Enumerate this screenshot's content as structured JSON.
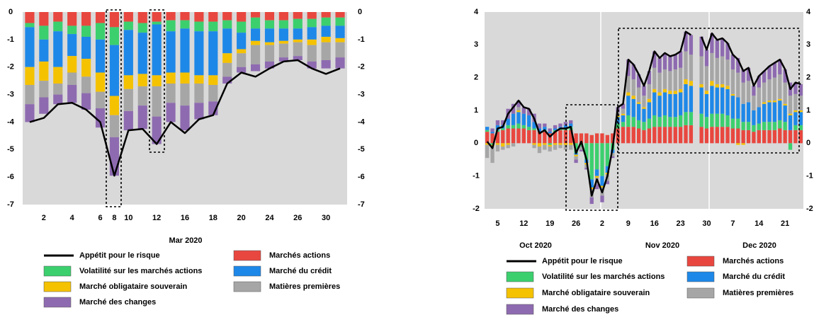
{
  "chart_data": [
    {
      "type": "bar",
      "stacked": true,
      "xlabel": "Mar 2020",
      "categories": [
        null,
        "2",
        null,
        "4",
        null,
        "6",
        "8",
        "10",
        null,
        "12",
        null,
        "16",
        null,
        "18",
        null,
        "20",
        null,
        "24",
        null,
        "26",
        null,
        "30",
        null
      ],
      "ylim": [
        -7,
        0
      ],
      "yticks": [
        0,
        -1,
        -2,
        -3,
        -4,
        -5,
        -6,
        -7
      ],
      "y2lim": [
        -7,
        0
      ],
      "y2ticks": [
        0,
        -1,
        -2,
        -3,
        -4,
        -5,
        -6,
        -7
      ],
      "grid": false,
      "series": [
        {
          "name": "Appétit pour le risque",
          "type": "line",
          "color": "#000000",
          "values": [
            -4.0,
            -3.85,
            -3.35,
            -3.3,
            -3.55,
            -4.0,
            -5.95,
            -4.3,
            -4.25,
            -4.8,
            -4.0,
            -4.4,
            -3.9,
            -3.75,
            -2.6,
            -2.2,
            -2.35,
            -2.05,
            -1.8,
            -1.75,
            -2.05,
            -2.25,
            -2.05
          ]
        },
        {
          "name": "Marchés actions",
          "type": "bar",
          "color": "#e8473f",
          "values": [
            -0.4,
            -0.5,
            -0.35,
            -0.5,
            -0.5,
            -0.4,
            -0.55,
            -0.35,
            -0.4,
            -0.35,
            -0.3,
            -0.3,
            -0.35,
            -0.35,
            -0.3,
            -0.35,
            -0.2,
            -0.3,
            -0.3,
            -0.25,
            -0.25,
            -0.2,
            -0.2
          ]
        },
        {
          "name": "Volatilité sur les marchés actions",
          "type": "bar",
          "color": "#3ccf6e",
          "values": [
            -0.15,
            -0.5,
            -0.35,
            -0.3,
            -0.4,
            -0.6,
            -0.65,
            -0.3,
            -0.35,
            -0.1,
            -0.4,
            -0.3,
            -0.35,
            -0.35,
            -0.3,
            -0.4,
            -0.4,
            -0.3,
            -0.3,
            -0.35,
            -0.3,
            -0.3,
            -0.3
          ]
        },
        {
          "name": "Marché du crédit",
          "type": "bar",
          "color": "#1e88e8",
          "values": [
            -1.45,
            -0.8,
            -1.3,
            -0.8,
            -0.8,
            -1.2,
            -1.85,
            -1.65,
            -1.5,
            -1.85,
            -1.5,
            -1.6,
            -1.6,
            -1.6,
            -0.9,
            -0.6,
            -0.45,
            -0.5,
            -0.45,
            -0.4,
            -0.45,
            -0.4,
            -0.45
          ]
        },
        {
          "name": "Marché obligataire souverain",
          "type": "bar",
          "color": "#f5c200",
          "values": [
            -0.65,
            -0.7,
            -0.6,
            -0.6,
            -0.65,
            -0.7,
            -0.7,
            -0.5,
            -0.45,
            -0.4,
            -0.4,
            -0.4,
            -0.3,
            -0.35,
            -0.35,
            -0.15,
            -0.15,
            -0.1,
            -0.1,
            -0.1,
            -0.2,
            -0.2,
            -0.15
          ]
        },
        {
          "name": "Matières premières",
          "type": "bar",
          "color": "#a6a6a6",
          "values": [
            -0.7,
            -0.6,
            -0.4,
            -0.45,
            -0.6,
            -0.6,
            -0.8,
            -0.8,
            -0.7,
            -1.1,
            -0.7,
            -0.8,
            -0.7,
            -0.6,
            -0.5,
            -0.5,
            -0.7,
            -0.6,
            -0.5,
            -0.5,
            -0.6,
            -0.65,
            -0.55
          ]
        },
        {
          "name": "Marché des changes",
          "type": "bar",
          "color": "#8e6bb0",
          "values": [
            -0.65,
            -0.6,
            -0.35,
            -0.65,
            -0.6,
            -0.7,
            -1.4,
            -0.7,
            -0.85,
            -1.0,
            -0.7,
            -0.9,
            -0.6,
            -0.5,
            -0.25,
            -0.2,
            -0.25,
            -0.25,
            -0.15,
            -0.15,
            -0.25,
            -0.3,
            -0.4
          ]
        }
      ]
    },
    {
      "type": "bar",
      "stacked": true,
      "x_group_labels": [
        "Oct 2020",
        "Nov 2020",
        "Dec 2020"
      ],
      "categories": [
        null,
        null,
        "5",
        null,
        null,
        null,
        null,
        "12",
        null,
        null,
        null,
        null,
        "19",
        null,
        null,
        null,
        null,
        "26",
        null,
        null,
        null,
        null,
        "2",
        null,
        null,
        null,
        null,
        "9",
        null,
        null,
        null,
        null,
        "16",
        null,
        null,
        null,
        null,
        "23",
        null,
        null,
        null,
        null,
        "30",
        null,
        null,
        null,
        null,
        "7",
        null,
        null,
        null,
        null,
        "14",
        null,
        null,
        null,
        null,
        "21",
        null,
        null,
        null
      ],
      "ylim": [
        -2,
        4
      ],
      "yticks": [
        4,
        3,
        2,
        1,
        0,
        -1,
        -2
      ],
      "y2lim": [
        -2,
        4
      ],
      "y2ticks": [
        4,
        3,
        2,
        1,
        0,
        -1,
        -2
      ],
      "grid": false,
      "series": [
        {
          "name": "Appétit pour le risque",
          "type": "line",
          "color": "#000000",
          "values": [
            0.05,
            -0.15,
            0.45,
            0.5,
            0.9,
            1.1,
            1.3,
            1.1,
            1.05,
            0.75,
            0.3,
            0.4,
            0.2,
            0.35,
            0.45,
            0.45,
            0.5,
            -0.3,
            0.05,
            -0.5,
            -1.6,
            -1.1,
            -1.5,
            -1.0,
            -0.15,
            1.1,
            1.2,
            2.55,
            2.4,
            2.1,
            1.75,
            2.2,
            2.8,
            2.6,
            2.75,
            2.65,
            2.7,
            2.8,
            3.4,
            3.3,
            null,
            3.25,
            2.85,
            3.35,
            3.15,
            3.2,
            3.05,
            2.7,
            2.55,
            2.2,
            2.3,
            1.75,
            2.05,
            2.2,
            2.35,
            2.45,
            2.55,
            2.25,
            1.65,
            1.85,
            1.8
          ]
        },
        {
          "name": "Marchés actions",
          "type": "bar",
          "color": "#e8473f",
          "values": [
            0.35,
            0.3,
            0.35,
            0.4,
            0.45,
            0.45,
            0.45,
            0.45,
            0.4,
            0.4,
            0.35,
            0.35,
            0.3,
            0.35,
            0.4,
            0.4,
            0.4,
            0.3,
            0.3,
            0.3,
            0.25,
            0.3,
            0.3,
            0.25,
            0.3,
            0.45,
            0.5,
            0.5,
            0.5,
            0.45,
            0.4,
            0.45,
            0.5,
            0.5,
            0.5,
            0.5,
            0.5,
            0.5,
            0.55,
            0.55,
            null,
            0.5,
            0.45,
            0.5,
            0.5,
            0.5,
            0.5,
            0.45,
            0.45,
            0.4,
            0.4,
            0.35,
            0.4,
            0.4,
            0.4,
            0.4,
            0.45,
            0.4,
            0.4,
            0.4,
            0.4
          ]
        },
        {
          "name": "Volatilité sur les marchés actions",
          "type": "bar",
          "color": "#3ccf6e",
          "values": [
            0.05,
            -0.05,
            0.05,
            0.05,
            0.1,
            0.1,
            0.15,
            0.1,
            0.1,
            0.05,
            0.0,
            0.05,
            -0.05,
            0.05,
            0.05,
            0.05,
            0.1,
            -0.3,
            -0.1,
            -0.5,
            -1.1,
            -0.8,
            -1.0,
            -0.7,
            -0.2,
            0.15,
            0.15,
            0.35,
            0.3,
            0.25,
            0.25,
            0.3,
            0.35,
            0.3,
            0.35,
            0.3,
            0.3,
            0.35,
            0.4,
            0.4,
            null,
            0.4,
            0.35,
            0.4,
            0.4,
            0.4,
            0.35,
            0.3,
            0.3,
            0.25,
            0.25,
            0.2,
            0.2,
            0.25,
            0.25,
            0.25,
            0.25,
            0.25,
            -0.2,
            0.15,
            0.15
          ]
        },
        {
          "name": "Marché du crédit",
          "type": "bar",
          "color": "#1e88e8",
          "values": [
            0.1,
            0.05,
            0.15,
            0.1,
            0.2,
            0.35,
            0.35,
            0.35,
            0.35,
            0.2,
            0.1,
            0.1,
            0.05,
            0.05,
            0.05,
            0.1,
            0.1,
            -0.05,
            0.0,
            -0.1,
            -0.25,
            -0.2,
            -0.3,
            -0.2,
            -0.1,
            0.2,
            0.2,
            0.6,
            0.55,
            0.5,
            0.4,
            0.5,
            0.7,
            0.65,
            0.7,
            0.7,
            0.7,
            0.7,
            0.85,
            0.8,
            null,
            0.8,
            0.7,
            0.85,
            0.8,
            0.8,
            0.8,
            0.7,
            0.65,
            0.55,
            0.6,
            0.45,
            0.5,
            0.55,
            0.6,
            0.6,
            0.6,
            0.5,
            0.45,
            0.4,
            0.4
          ]
        },
        {
          "name": "Marché obligataire souverain",
          "type": "bar",
          "color": "#f5c200",
          "values": [
            -0.05,
            -0.05,
            -0.05,
            -0.1,
            -0.05,
            0.0,
            0.05,
            0.0,
            0.0,
            -0.05,
            -0.1,
            -0.05,
            -0.05,
            -0.05,
            -0.05,
            -0.05,
            -0.05,
            -0.05,
            0.0,
            -0.05,
            -0.05,
            -0.05,
            -0.05,
            -0.05,
            0.0,
            0.05,
            0.05,
            0.1,
            0.1,
            0.05,
            0.05,
            0.1,
            0.1,
            0.1,
            0.1,
            0.1,
            0.1,
            0.1,
            0.15,
            0.15,
            null,
            0.1,
            0.1,
            0.15,
            0.1,
            0.1,
            0.1,
            0.05,
            -0.05,
            -0.05,
            0.0,
            0.0,
            0.0,
            0.05,
            0.05,
            0.05,
            0.05,
            0.05,
            0.05,
            0.05,
            0.05
          ]
        },
        {
          "name": "Matières premières",
          "type": "bar",
          "color": "#a6a6a6",
          "values": [
            -0.4,
            -0.5,
            -0.2,
            -0.1,
            -0.1,
            -0.1,
            0.1,
            0.0,
            0.0,
            -0.1,
            -0.2,
            -0.15,
            -0.15,
            -0.15,
            -0.1,
            -0.15,
            -0.15,
            -0.1,
            -0.1,
            -0.1,
            -0.25,
            -0.2,
            -0.25,
            -0.2,
            -0.1,
            0.1,
            0.15,
            0.5,
            0.5,
            0.45,
            0.35,
            0.45,
            0.65,
            0.6,
            0.6,
            0.6,
            0.65,
            0.65,
            0.85,
            0.8,
            null,
            0.85,
            0.75,
            0.85,
            0.8,
            0.85,
            0.8,
            0.75,
            0.75,
            0.65,
            0.65,
            0.45,
            0.6,
            0.6,
            0.65,
            0.7,
            0.75,
            0.65,
            0.55,
            0.5,
            0.45
          ]
        },
        {
          "name": "Marché des changes",
          "type": "bar",
          "color": "#8e6bb0",
          "values": [
            0.0,
            0.1,
            0.15,
            0.15,
            0.3,
            0.3,
            0.2,
            0.2,
            0.2,
            0.25,
            0.15,
            0.1,
            0.1,
            0.1,
            0.1,
            0.1,
            0.1,
            -0.1,
            -0.05,
            -0.05,
            -0.2,
            -0.15,
            -0.2,
            -0.1,
            -0.05,
            0.15,
            0.15,
            0.5,
            0.45,
            0.4,
            0.3,
            0.4,
            0.5,
            0.45,
            0.5,
            0.45,
            0.45,
            0.5,
            0.6,
            0.6,
            null,
            0.6,
            0.5,
            0.6,
            0.55,
            0.55,
            0.5,
            0.45,
            0.45,
            0.4,
            0.4,
            0.3,
            0.35,
            0.35,
            0.4,
            0.45,
            0.45,
            0.4,
            0.4,
            0.35,
            0.35
          ]
        }
      ]
    }
  ]
}
